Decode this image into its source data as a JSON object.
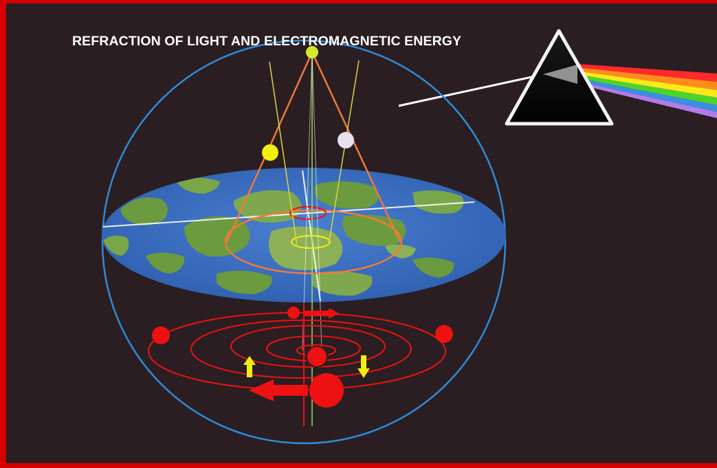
{
  "diagram": {
    "title": "REFRACTION OF LIGHT AND ELECTROMAGNETIC ENERGY"
  },
  "colors": {
    "background": "#2a1e22",
    "frame_red": "#d40000",
    "dome_blue": "#2f8bd9",
    "sun_yellow": "#f2ee10",
    "moon_white": "#e8e0ec",
    "cone_orange": "#f07a38",
    "orbit_red": "#ee1111",
    "ocean_blue": "#3a6ec6",
    "land_green": "#6b9a3f"
  },
  "icons": {
    "prism": "prism-icon",
    "up_arrow": "up-arrow-icon",
    "down_arrow": "down-arrow-icon",
    "left_arrow": "left-arrow-icon",
    "right_arrow": "right-arrow-icon"
  }
}
